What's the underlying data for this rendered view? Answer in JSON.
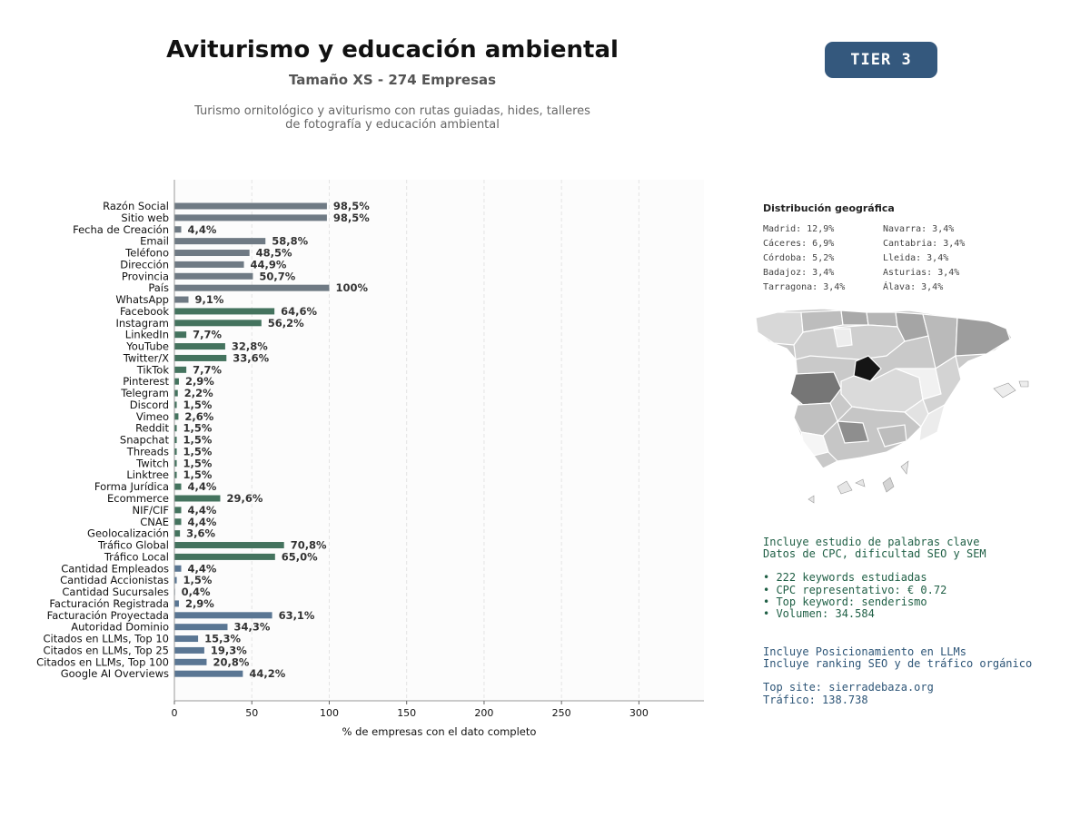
{
  "header": {
    "title": "Aviturismo y educación ambiental",
    "subtitle": "Tamaño XS - 274 Empresas",
    "description_line1": "Turismo ornitológico y aviturismo con rutas guiadas, hides, talleres",
    "description_line2": "de fotografía y educación ambiental",
    "tier": "TIER 3"
  },
  "chart_data": {
    "type": "bar",
    "orientation": "horizontal",
    "xlabel": "% de empresas con el dato completo",
    "xlim": [
      0,
      342
    ],
    "xticks": [
      0,
      50,
      100,
      150,
      200,
      250,
      300
    ],
    "grid": "vertical-dashed",
    "colors": {
      "basic": "#6f7a84",
      "social": "#44735e",
      "business": "#5a7693"
    },
    "categories": [
      {
        "label": "Razón Social",
        "value": 98.5,
        "display": "98,5%",
        "group": "basic"
      },
      {
        "label": "Sitio web",
        "value": 98.5,
        "display": "98,5%",
        "group": "basic"
      },
      {
        "label": "Fecha de Creación",
        "value": 4.4,
        "display": "4,4%",
        "group": "basic"
      },
      {
        "label": "Email",
        "value": 58.8,
        "display": "58,8%",
        "group": "basic"
      },
      {
        "label": "Teléfono",
        "value": 48.5,
        "display": "48,5%",
        "group": "basic"
      },
      {
        "label": "Dirección",
        "value": 44.9,
        "display": "44,9%",
        "group": "basic"
      },
      {
        "label": "Provincia",
        "value": 50.7,
        "display": "50,7%",
        "group": "basic"
      },
      {
        "label": "País",
        "value": 100,
        "display": "100%",
        "group": "basic"
      },
      {
        "label": "WhatsApp",
        "value": 9.1,
        "display": "9,1%",
        "group": "basic"
      },
      {
        "label": "Facebook",
        "value": 64.6,
        "display": "64,6%",
        "group": "social"
      },
      {
        "label": "Instagram",
        "value": 56.2,
        "display": "56,2%",
        "group": "social"
      },
      {
        "label": "LinkedIn",
        "value": 7.7,
        "display": "7,7%",
        "group": "social"
      },
      {
        "label": "YouTube",
        "value": 32.8,
        "display": "32,8%",
        "group": "social"
      },
      {
        "label": "Twitter/X",
        "value": 33.6,
        "display": "33,6%",
        "group": "social"
      },
      {
        "label": "TikTok",
        "value": 7.7,
        "display": "7,7%",
        "group": "social"
      },
      {
        "label": "Pinterest",
        "value": 2.9,
        "display": "2,9%",
        "group": "social"
      },
      {
        "label": "Telegram",
        "value": 2.2,
        "display": "2,2%",
        "group": "social"
      },
      {
        "label": "Discord",
        "value": 1.5,
        "display": "1,5%",
        "group": "social"
      },
      {
        "label": "Vimeo",
        "value": 2.6,
        "display": "2,6%",
        "group": "social"
      },
      {
        "label": "Reddit",
        "value": 1.5,
        "display": "1,5%",
        "group": "social"
      },
      {
        "label": "Snapchat",
        "value": 1.5,
        "display": "1,5%",
        "group": "social"
      },
      {
        "label": "Threads",
        "value": 1.5,
        "display": "1,5%",
        "group": "social"
      },
      {
        "label": "Twitch",
        "value": 1.5,
        "display": "1,5%",
        "group": "social"
      },
      {
        "label": "Linktree",
        "value": 1.5,
        "display": "1,5%",
        "group": "social"
      },
      {
        "label": "Forma Jurídica",
        "value": 4.4,
        "display": "4,4%",
        "group": "social"
      },
      {
        "label": "Ecommerce",
        "value": 29.6,
        "display": "29,6%",
        "group": "social"
      },
      {
        "label": "NIF/CIF",
        "value": 4.4,
        "display": "4,4%",
        "group": "social"
      },
      {
        "label": "CNAE",
        "value": 4.4,
        "display": "4,4%",
        "group": "social"
      },
      {
        "label": "Geolocalización",
        "value": 3.6,
        "display": "3,6%",
        "group": "social"
      },
      {
        "label": "Tráfico Global",
        "value": 70.8,
        "display": "70,8%",
        "group": "social"
      },
      {
        "label": "Tráfico Local",
        "value": 65.0,
        "display": "65,0%",
        "group": "social"
      },
      {
        "label": "Cantidad Empleados",
        "value": 4.4,
        "display": "4,4%",
        "group": "business"
      },
      {
        "label": "Cantidad Accionistas",
        "value": 1.5,
        "display": "1,5%",
        "group": "business"
      },
      {
        "label": "Cantidad Sucursales",
        "value": 0.4,
        "display": "0,4%",
        "group": "business"
      },
      {
        "label": "Facturación Registrada",
        "value": 2.9,
        "display": "2,9%",
        "group": "business"
      },
      {
        "label": "Facturación Proyectada",
        "value": 63.1,
        "display": "63,1%",
        "group": "business"
      },
      {
        "label": "Autoridad Dominio",
        "value": 34.3,
        "display": "34,3%",
        "group": "business"
      },
      {
        "label": "Citados en LLMs, Top 10",
        "value": 15.3,
        "display": "15,3%",
        "group": "business"
      },
      {
        "label": "Citados en LLMs, Top 25",
        "value": 19.3,
        "display": "19,3%",
        "group": "business"
      },
      {
        "label": "Citados en LLMs, Top 100",
        "value": 20.8,
        "display": "20,8%",
        "group": "business"
      },
      {
        "label": "Google AI Overviews",
        "value": 44.2,
        "display": "44,2%",
        "group": "business"
      }
    ]
  },
  "geo": {
    "title": "Distribución geográfica",
    "items": [
      "Madrid: 12,9%",
      "Navarra: 3,4%",
      "Cáceres: 6,9%",
      "Cantabria: 3,4%",
      "Córdoba: 5,2%",
      "Lleida: 3,4%",
      "Badajoz: 3,4%",
      "Asturias: 3,4%",
      "Tarragona: 3,4%",
      "Álava: 3,4%"
    ]
  },
  "keywords": {
    "line1": "Incluye estudio de palabras clave",
    "line2": "Datos de CPC, dificultad SEO y SEM",
    "bullet1": "• 222 keywords estudiadas",
    "bullet2": "• CPC representativo: € 0.72",
    "bullet3": "• Top keyword: senderismo",
    "bullet4": "• Volumen: 34.584"
  },
  "llm": {
    "line1": "Incluye Posicionamiento en LLMs",
    "line2": "Incluye ranking SEO y de tráfico orgánico",
    "top_site": "Top site: sierradebaza.org",
    "traffic": "Tráfico: 138.738"
  }
}
